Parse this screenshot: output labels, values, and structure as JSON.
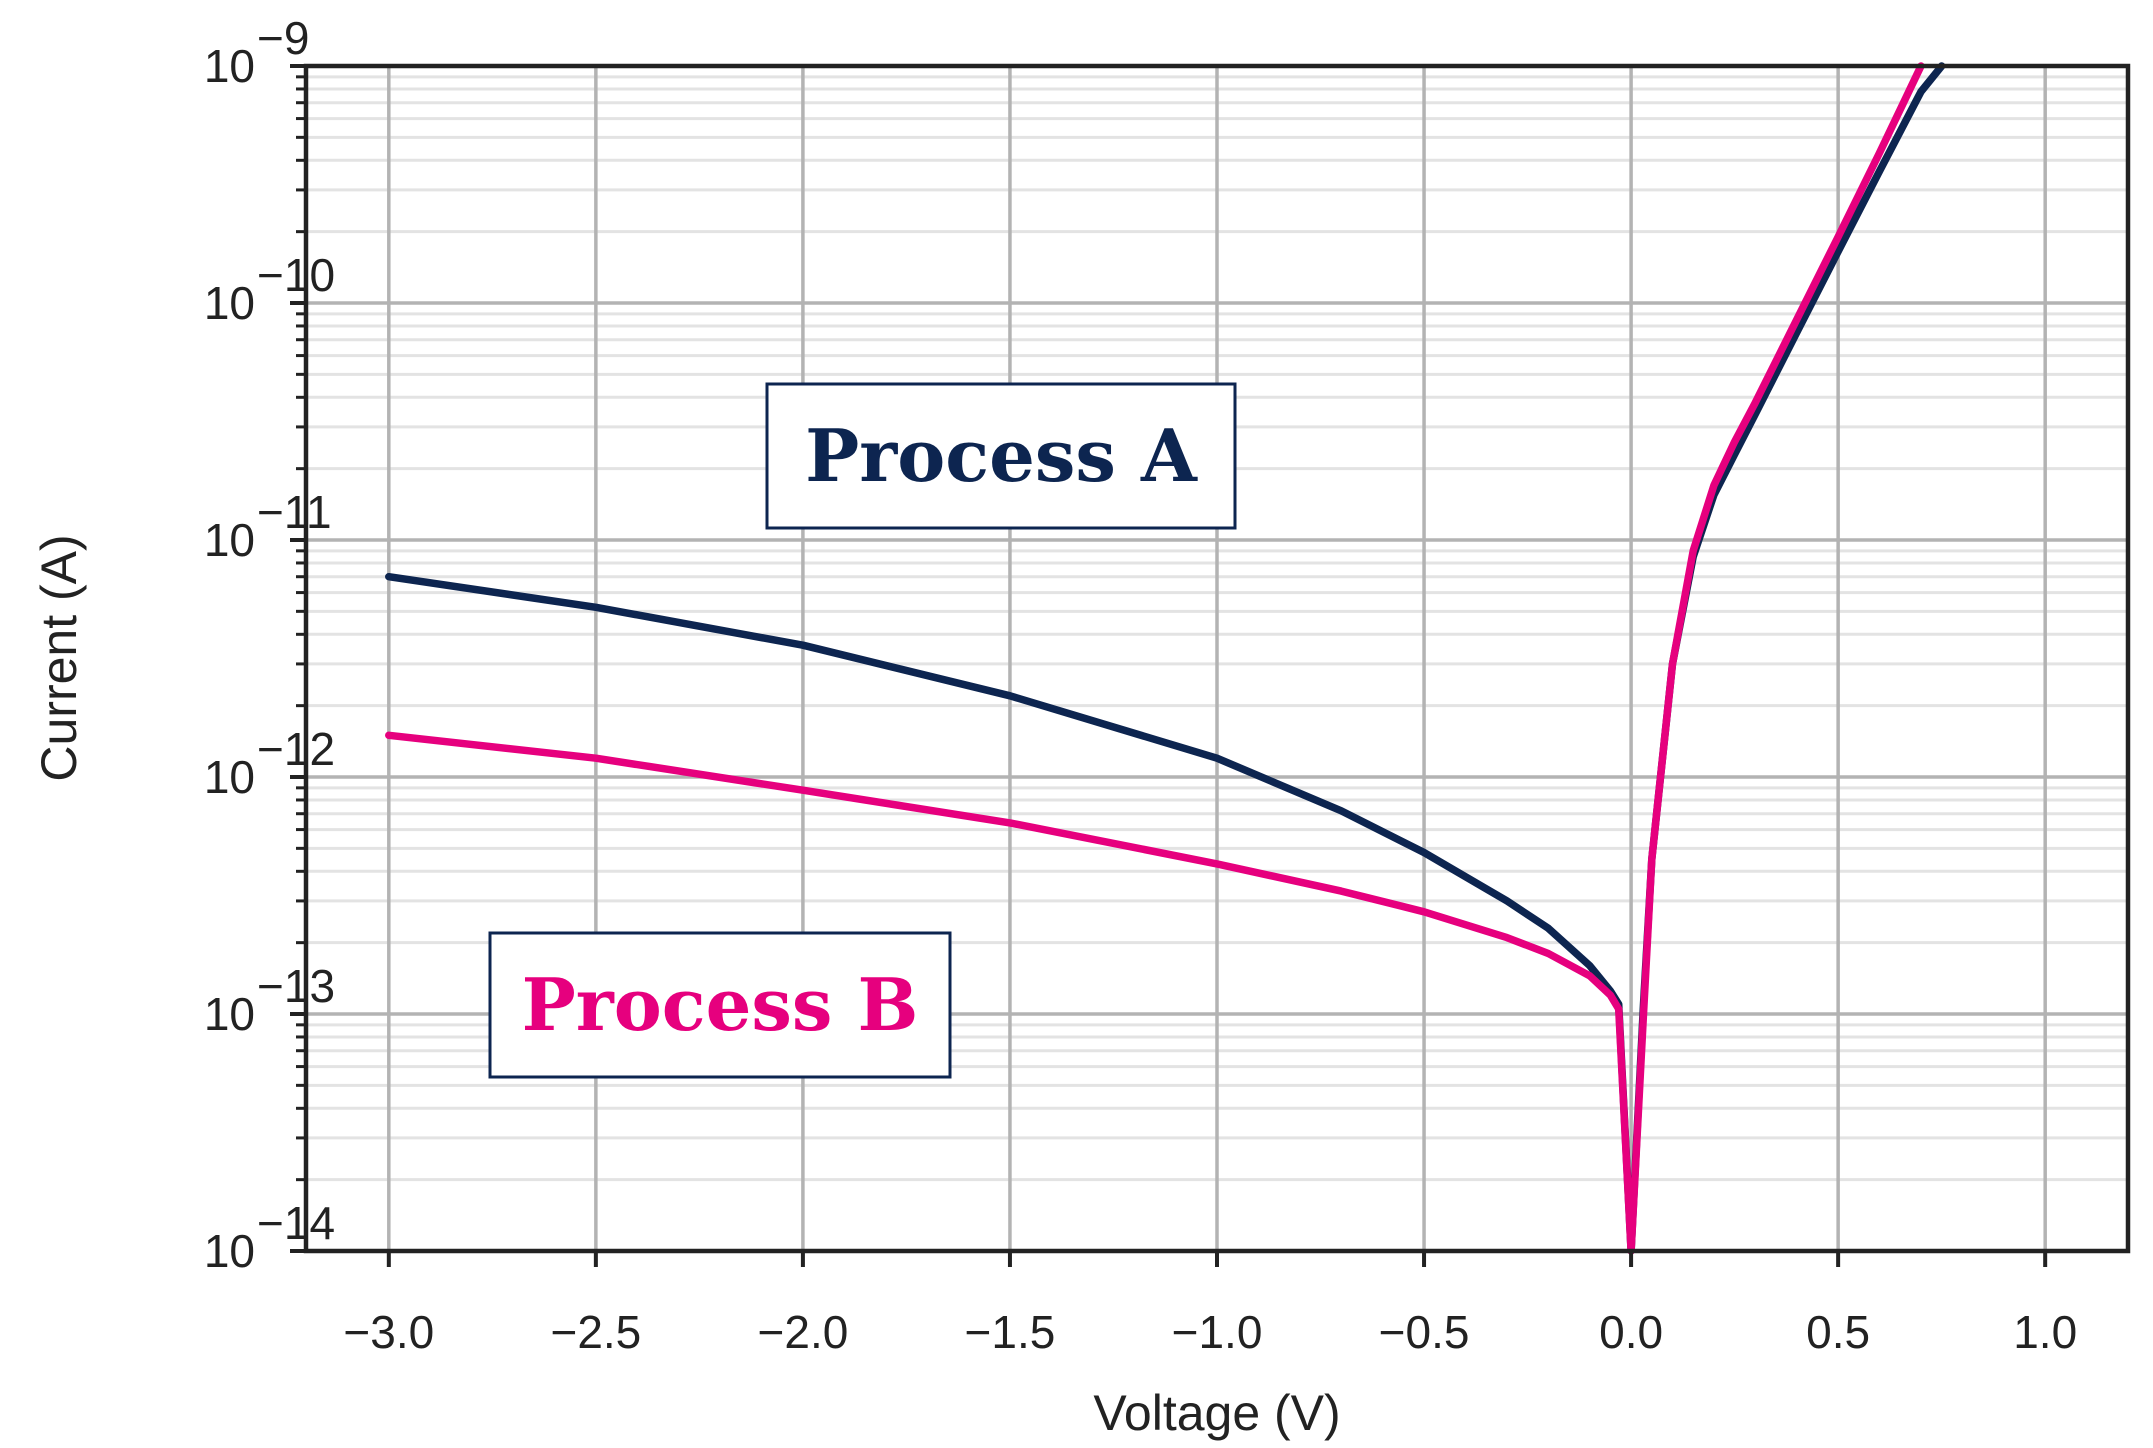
{
  "chart_data": {
    "type": "line",
    "title": "",
    "xlabel": "Voltage (V)",
    "ylabel": "Current (A)",
    "xlim": [
      -3.2,
      1.2
    ],
    "ylim": [
      1e-14,
      1e-09
    ],
    "y_scale": "log",
    "grid": true,
    "x_ticks": [
      {
        "value": -3.0,
        "label": "−3.0"
      },
      {
        "value": -2.5,
        "label": "−2.5"
      },
      {
        "value": -2.0,
        "label": "−2.0"
      },
      {
        "value": -1.5,
        "label": "−1.5"
      },
      {
        "value": -1.0,
        "label": "−1.0"
      },
      {
        "value": -0.5,
        "label": "−0.5"
      },
      {
        "value": 0.0,
        "label": "0.0"
      },
      {
        "value": 0.5,
        "label": "0.5"
      },
      {
        "value": 1.0,
        "label": "1.0"
      }
    ],
    "y_ticks": [
      {
        "exp": -14,
        "base": "10",
        "sup": "−14"
      },
      {
        "exp": -13,
        "base": "10",
        "sup": "−13"
      },
      {
        "exp": -12,
        "base": "10",
        "sup": "−12"
      },
      {
        "exp": -11,
        "base": "10",
        "sup": "−11"
      },
      {
        "exp": -10,
        "base": "10",
        "sup": "−10"
      },
      {
        "exp": -9,
        "base": "10",
        "sup": "−9"
      }
    ],
    "series": [
      {
        "name": "Process A",
        "color": "#0d2550",
        "x": [
          -3.0,
          -2.5,
          -2.0,
          -1.5,
          -1.0,
          -0.7,
          -0.5,
          -0.3,
          -0.2,
          -0.1,
          -0.05,
          -0.03,
          0.0,
          0.03,
          0.05,
          0.1,
          0.15,
          0.2,
          0.25,
          0.3,
          0.4,
          0.5,
          0.6,
          0.7,
          0.75
        ],
        "y": [
          7e-12,
          5.2e-12,
          3.6e-12,
          2.2e-12,
          1.2e-12,
          7.2e-13,
          4.8e-13,
          3e-13,
          2.3e-13,
          1.6e-13,
          1.25e-13,
          1.1e-13,
          1e-14,
          1.1e-13,
          4.5e-13,
          3e-12,
          8.5e-12,
          1.55e-11,
          2.3e-11,
          3.4e-11,
          7.5e-11,
          1.65e-10,
          3.6e-10,
          7.8e-10,
          1e-09
        ]
      },
      {
        "name": "Process B",
        "color": "#e6007e",
        "x": [
          -3.0,
          -2.5,
          -2.0,
          -1.5,
          -1.0,
          -0.7,
          -0.5,
          -0.3,
          -0.2,
          -0.1,
          -0.05,
          -0.03,
          0.0,
          0.03,
          0.05,
          0.1,
          0.15,
          0.2,
          0.25,
          0.3,
          0.4,
          0.5,
          0.6,
          0.7
        ],
        "y": [
          1.5e-12,
          1.2e-12,
          8.8e-13,
          6.4e-13,
          4.3e-13,
          3.3e-13,
          2.7e-13,
          2.1e-13,
          1.8e-13,
          1.45e-13,
          1.2e-13,
          1.05e-13,
          1e-14,
          1e-13,
          4.5e-13,
          3e-12,
          9e-12,
          1.7e-11,
          2.6e-11,
          3.8e-11,
          8.5e-11,
          1.9e-10,
          4.3e-10,
          1e-09
        ]
      }
    ],
    "annotations": [
      {
        "text": "Process A",
        "series": 0,
        "color": "#0d2550"
      },
      {
        "text": "Process B",
        "series": 1,
        "color": "#e6007e"
      }
    ]
  }
}
